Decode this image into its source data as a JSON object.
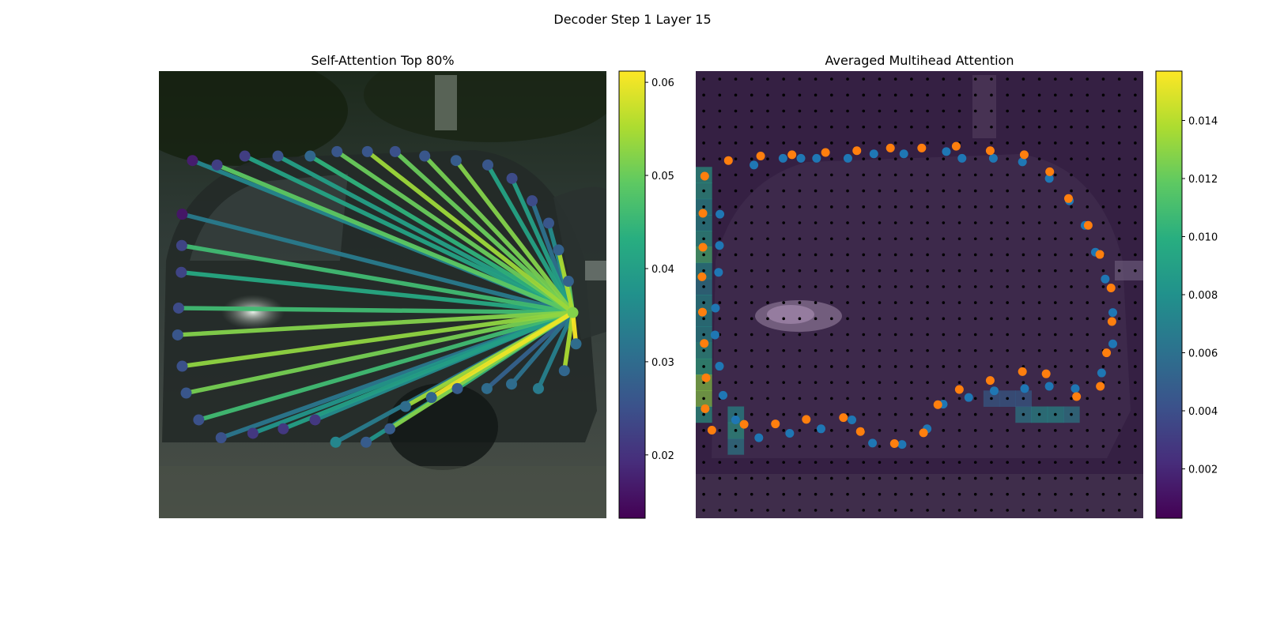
{
  "figure": {
    "suptitle": "Decoder Step 1 Layer 15"
  },
  "chart_data": [
    {
      "type": "scatter",
      "title": "Self-Attention Top 80%",
      "colormap": "viridis",
      "colorbar": {
        "min": 0.0132,
        "max": 0.0612,
        "ticks": [
          0.02,
          0.03,
          0.04,
          0.05,
          0.06
        ],
        "labels": [
          "0.02",
          "0.03",
          "0.04",
          "0.05",
          "0.06"
        ]
      },
      "query_point": {
        "x": 0.925,
        "y": 0.54,
        "value": 0.052
      },
      "points": [
        {
          "x": 0.075,
          "y": 0.2,
          "value": 0.017
        },
        {
          "x": 0.13,
          "y": 0.21,
          "value": 0.022
        },
        {
          "x": 0.192,
          "y": 0.19,
          "value": 0.022
        },
        {
          "x": 0.266,
          "y": 0.19,
          "value": 0.025
        },
        {
          "x": 0.338,
          "y": 0.19,
          "value": 0.029
        },
        {
          "x": 0.398,
          "y": 0.18,
          "value": 0.026
        },
        {
          "x": 0.466,
          "y": 0.18,
          "value": 0.026
        },
        {
          "x": 0.528,
          "y": 0.18,
          "value": 0.025
        },
        {
          "x": 0.594,
          "y": 0.19,
          "value": 0.026
        },
        {
          "x": 0.664,
          "y": 0.2,
          "value": 0.027
        },
        {
          "x": 0.735,
          "y": 0.21,
          "value": 0.026
        },
        {
          "x": 0.789,
          "y": 0.24,
          "value": 0.024
        },
        {
          "x": 0.834,
          "y": 0.29,
          "value": 0.024
        },
        {
          "x": 0.871,
          "y": 0.34,
          "value": 0.026
        },
        {
          "x": 0.893,
          "y": 0.4,
          "value": 0.028
        },
        {
          "x": 0.915,
          "y": 0.47,
          "value": 0.028
        },
        {
          "x": 0.932,
          "y": 0.61,
          "value": 0.03
        },
        {
          "x": 0.906,
          "y": 0.67,
          "value": 0.029
        },
        {
          "x": 0.848,
          "y": 0.71,
          "value": 0.033
        },
        {
          "x": 0.788,
          "y": 0.7,
          "value": 0.03
        },
        {
          "x": 0.733,
          "y": 0.71,
          "value": 0.03
        },
        {
          "x": 0.667,
          "y": 0.71,
          "value": 0.027
        },
        {
          "x": 0.609,
          "y": 0.73,
          "value": 0.029
        },
        {
          "x": 0.551,
          "y": 0.75,
          "value": 0.03
        },
        {
          "x": 0.516,
          "y": 0.8,
          "value": 0.027
        },
        {
          "x": 0.463,
          "y": 0.83,
          "value": 0.027
        },
        {
          "x": 0.395,
          "y": 0.83,
          "value": 0.035
        },
        {
          "x": 0.349,
          "y": 0.78,
          "value": 0.021
        },
        {
          "x": 0.278,
          "y": 0.8,
          "value": 0.021
        },
        {
          "x": 0.21,
          "y": 0.81,
          "value": 0.021
        },
        {
          "x": 0.139,
          "y": 0.82,
          "value": 0.025
        },
        {
          "x": 0.089,
          "y": 0.78,
          "value": 0.025
        },
        {
          "x": 0.061,
          "y": 0.72,
          "value": 0.026
        },
        {
          "x": 0.052,
          "y": 0.66,
          "value": 0.025
        },
        {
          "x": 0.042,
          "y": 0.59,
          "value": 0.026
        },
        {
          "x": 0.044,
          "y": 0.53,
          "value": 0.024
        },
        {
          "x": 0.05,
          "y": 0.45,
          "value": 0.023
        },
        {
          "x": 0.051,
          "y": 0.39,
          "value": 0.023
        },
        {
          "x": 0.052,
          "y": 0.32,
          "value": 0.016
        }
      ],
      "lines": [
        {
          "from": 0,
          "to": "q",
          "value": 0.035
        },
        {
          "from": 1,
          "to": "q",
          "value": 0.049
        },
        {
          "from": 2,
          "to": "q",
          "value": 0.041
        },
        {
          "from": 3,
          "to": "q",
          "value": 0.04
        },
        {
          "from": 4,
          "to": "q",
          "value": 0.044
        },
        {
          "from": 5,
          "to": "q",
          "value": 0.05
        },
        {
          "from": 6,
          "to": "q",
          "value": 0.054
        },
        {
          "from": 7,
          "to": "q",
          "value": 0.05
        },
        {
          "from": 8,
          "to": "q",
          "value": 0.051
        },
        {
          "from": 9,
          "to": "q",
          "value": 0.052
        },
        {
          "from": 10,
          "to": "q",
          "value": 0.041
        },
        {
          "from": 11,
          "to": "q",
          "value": 0.04
        },
        {
          "from": 12,
          "to": "q",
          "value": 0.031
        },
        {
          "from": 13,
          "to": "q",
          "value": 0.036
        },
        {
          "from": 14,
          "to": "q",
          "value": 0.055
        },
        {
          "from": 15,
          "to": "q",
          "value": 0.049
        },
        {
          "from": 16,
          "to": "q",
          "value": 0.061
        },
        {
          "from": 17,
          "to": "q",
          "value": 0.055
        },
        {
          "from": 18,
          "to": "q",
          "value": 0.034
        },
        {
          "from": 19,
          "to": "q",
          "value": 0.031
        },
        {
          "from": 20,
          "to": "q",
          "value": 0.028
        },
        {
          "from": 21,
          "to": "q",
          "value": 0.045
        },
        {
          "from": 22,
          "to": "q",
          "value": 0.06
        },
        {
          "from": 23,
          "to": "q",
          "value": 0.054
        },
        {
          "from": 24,
          "to": "q",
          "value": 0.052
        },
        {
          "from": 25,
          "to": "q",
          "value": 0.038
        },
        {
          "from": 26,
          "to": "q",
          "value": 0.033
        },
        {
          "from": 27,
          "to": "q",
          "value": 0.036
        },
        {
          "from": 28,
          "to": "q",
          "value": 0.04
        },
        {
          "from": 29,
          "to": "q",
          "value": 0.038
        },
        {
          "from": 30,
          "to": "q",
          "value": 0.032
        },
        {
          "from": 31,
          "to": "q",
          "value": 0.046
        },
        {
          "from": 32,
          "to": "q",
          "value": 0.051
        },
        {
          "from": 33,
          "to": "q",
          "value": 0.053
        },
        {
          "from": 34,
          "to": "q",
          "value": 0.052
        },
        {
          "from": 35,
          "to": "q",
          "value": 0.046
        },
        {
          "from": 36,
          "to": "q",
          "value": 0.042
        },
        {
          "from": 37,
          "to": "q",
          "value": 0.046
        },
        {
          "from": 38,
          "to": "q",
          "value": 0.033
        }
      ]
    },
    {
      "type": "heatmap",
      "title": "Averaged Multihead Attention",
      "colormap": "viridis",
      "colorbar": {
        "min": 0.0003,
        "max": 0.0157,
        "ticks": [
          0.002,
          0.004,
          0.006,
          0.008,
          0.01,
          0.012,
          0.014
        ],
        "labels": [
          "0.002",
          "0.004",
          "0.006",
          "0.008",
          "0.010",
          "0.012",
          "0.014"
        ]
      },
      "grid": {
        "cols": 28,
        "rows": 28
      },
      "hot_cells": [
        {
          "c": 0,
          "r": 6,
          "v": 0.009
        },
        {
          "c": 0,
          "r": 7,
          "v": 0.009
        },
        {
          "c": 0,
          "r": 8,
          "v": 0.008
        },
        {
          "c": 0,
          "r": 9,
          "v": 0.008
        },
        {
          "c": 0,
          "r": 10,
          "v": 0.009
        },
        {
          "c": 0,
          "r": 11,
          "v": 0.011
        },
        {
          "c": 0,
          "r": 12,
          "v": 0.008
        },
        {
          "c": 0,
          "r": 13,
          "v": 0.007
        },
        {
          "c": 0,
          "r": 14,
          "v": 0.008
        },
        {
          "c": 0,
          "r": 15,
          "v": 0.008
        },
        {
          "c": 0,
          "r": 16,
          "v": 0.008
        },
        {
          "c": 0,
          "r": 17,
          "v": 0.009
        },
        {
          "c": 0,
          "r": 18,
          "v": 0.01
        },
        {
          "c": 0,
          "r": 19,
          "v": 0.013
        },
        {
          "c": 0,
          "r": 20,
          "v": 0.013
        },
        {
          "c": 0,
          "r": 21,
          "v": 0.009
        },
        {
          "c": 2,
          "r": 21,
          "v": 0.008
        },
        {
          "c": 2,
          "r": 22,
          "v": 0.009
        },
        {
          "c": 2,
          "r": 23,
          "v": 0.007
        },
        {
          "c": 20,
          "r": 21,
          "v": 0.007
        },
        {
          "c": 21,
          "r": 21,
          "v": 0.008
        },
        {
          "c": 22,
          "r": 21,
          "v": 0.008
        },
        {
          "c": 23,
          "r": 21,
          "v": 0.007
        },
        {
          "c": 19,
          "r": 20,
          "v": 0.005
        },
        {
          "c": 20,
          "r": 20,
          "v": 0.005
        },
        {
          "c": 18,
          "r": 20,
          "v": 0.005
        }
      ],
      "series": [
        {
          "name": "",
          "color": "#1f77b4",
          "points": [
            {
              "x": 0.13,
              "y": 0.21
            },
            {
              "x": 0.195,
              "y": 0.195
            },
            {
              "x": 0.235,
              "y": 0.195
            },
            {
              "x": 0.27,
              "y": 0.195
            },
            {
              "x": 0.34,
              "y": 0.195
            },
            {
              "x": 0.398,
              "y": 0.185
            },
            {
              "x": 0.465,
              "y": 0.185
            },
            {
              "x": 0.56,
              "y": 0.18
            },
            {
              "x": 0.595,
              "y": 0.195
            },
            {
              "x": 0.665,
              "y": 0.195
            },
            {
              "x": 0.73,
              "y": 0.203
            },
            {
              "x": 0.79,
              "y": 0.24
            },
            {
              "x": 0.835,
              "y": 0.29
            },
            {
              "x": 0.87,
              "y": 0.345
            },
            {
              "x": 0.893,
              "y": 0.405
            },
            {
              "x": 0.915,
              "y": 0.465
            },
            {
              "x": 0.932,
              "y": 0.54
            },
            {
              "x": 0.932,
              "y": 0.61
            },
            {
              "x": 0.907,
              "y": 0.675
            },
            {
              "x": 0.848,
              "y": 0.71
            },
            {
              "x": 0.79,
              "y": 0.705
            },
            {
              "x": 0.735,
              "y": 0.71
            },
            {
              "x": 0.667,
              "y": 0.715
            },
            {
              "x": 0.61,
              "y": 0.73
            },
            {
              "x": 0.553,
              "y": 0.745
            },
            {
              "x": 0.517,
              "y": 0.8
            },
            {
              "x": 0.461,
              "y": 0.835
            },
            {
              "x": 0.395,
              "y": 0.832
            },
            {
              "x": 0.349,
              "y": 0.78
            },
            {
              "x": 0.28,
              "y": 0.8
            },
            {
              "x": 0.21,
              "y": 0.81
            },
            {
              "x": 0.141,
              "y": 0.82
            },
            {
              "x": 0.089,
              "y": 0.78
            },
            {
              "x": 0.061,
              "y": 0.725
            },
            {
              "x": 0.053,
              "y": 0.66
            },
            {
              "x": 0.043,
              "y": 0.59
            },
            {
              "x": 0.044,
              "y": 0.53
            },
            {
              "x": 0.051,
              "y": 0.45
            },
            {
              "x": 0.053,
              "y": 0.39
            },
            {
              "x": 0.054,
              "y": 0.32
            }
          ]
        },
        {
          "name": "",
          "color": "#ff7f0e",
          "points": [
            {
              "x": 0.02,
              "y": 0.235
            },
            {
              "x": 0.073,
              "y": 0.2
            },
            {
              "x": 0.145,
              "y": 0.19
            },
            {
              "x": 0.215,
              "y": 0.187
            },
            {
              "x": 0.29,
              "y": 0.182
            },
            {
              "x": 0.36,
              "y": 0.178
            },
            {
              "x": 0.435,
              "y": 0.172
            },
            {
              "x": 0.505,
              "y": 0.172
            },
            {
              "x": 0.582,
              "y": 0.168
            },
            {
              "x": 0.658,
              "y": 0.178
            },
            {
              "x": 0.734,
              "y": 0.187
            },
            {
              "x": 0.791,
              "y": 0.225
            },
            {
              "x": 0.833,
              "y": 0.285
            },
            {
              "x": 0.877,
              "y": 0.345
            },
            {
              "x": 0.903,
              "y": 0.41
            },
            {
              "x": 0.928,
              "y": 0.485
            },
            {
              "x": 0.93,
              "y": 0.56
            },
            {
              "x": 0.918,
              "y": 0.63
            },
            {
              "x": 0.904,
              "y": 0.705
            },
            {
              "x": 0.851,
              "y": 0.728
            },
            {
              "x": 0.783,
              "y": 0.677
            },
            {
              "x": 0.73,
              "y": 0.672
            },
            {
              "x": 0.658,
              "y": 0.692
            },
            {
              "x": 0.589,
              "y": 0.712
            },
            {
              "x": 0.541,
              "y": 0.746
            },
            {
              "x": 0.509,
              "y": 0.809
            },
            {
              "x": 0.444,
              "y": 0.833
            },
            {
              "x": 0.368,
              "y": 0.806
            },
            {
              "x": 0.33,
              "y": 0.775
            },
            {
              "x": 0.247,
              "y": 0.779
            },
            {
              "x": 0.178,
              "y": 0.789
            },
            {
              "x": 0.108,
              "y": 0.79
            },
            {
              "x": 0.036,
              "y": 0.803
            },
            {
              "x": 0.021,
              "y": 0.755
            },
            {
              "x": 0.023,
              "y": 0.686
            },
            {
              "x": 0.019,
              "y": 0.609
            },
            {
              "x": 0.015,
              "y": 0.539
            },
            {
              "x": 0.014,
              "y": 0.46
            },
            {
              "x": 0.016,
              "y": 0.394
            },
            {
              "x": 0.016,
              "y": 0.318
            }
          ]
        }
      ]
    }
  ]
}
